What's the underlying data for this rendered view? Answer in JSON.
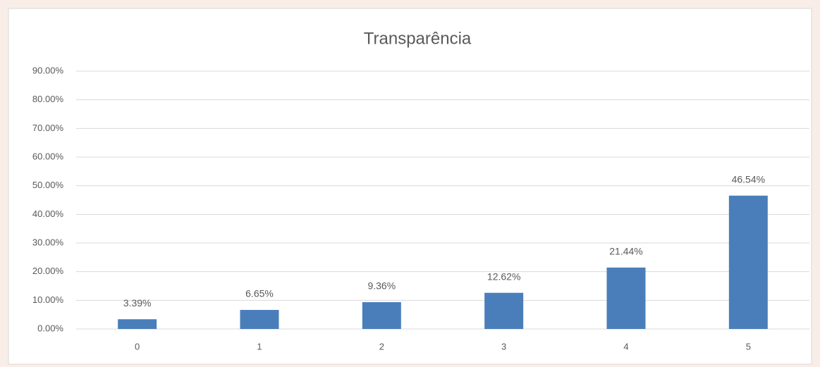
{
  "chart_data": {
    "type": "bar",
    "title": "Transparência",
    "categories": [
      "0",
      "1",
      "2",
      "3",
      "4",
      "5"
    ],
    "values": [
      3.39,
      6.65,
      9.36,
      12.62,
      21.44,
      46.54
    ],
    "value_labels": [
      "3.39%",
      "6.65%",
      "9.36%",
      "12.62%",
      "21.44%",
      "46.54%"
    ],
    "color": "#4a7ebb",
    "ylim": [
      0,
      90
    ],
    "yticks": [
      {
        "value": 0,
        "label": "0.00%"
      },
      {
        "value": 10,
        "label": "10.00%"
      },
      {
        "value": 20,
        "label": "20.00%"
      },
      {
        "value": 30,
        "label": "30.00%"
      },
      {
        "value": 40,
        "label": "40.00%"
      },
      {
        "value": 50,
        "label": "50.00%"
      },
      {
        "value": 60,
        "label": "60.00%"
      },
      {
        "value": 70,
        "label": "70.00%"
      },
      {
        "value": 80,
        "label": "80.00%"
      },
      {
        "value": 90,
        "label": "90.00%"
      }
    ],
    "grid": true
  }
}
